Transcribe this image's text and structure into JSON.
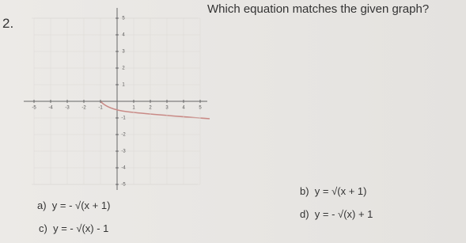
{
  "question": {
    "number": "2.",
    "text": "Which equation matches the given graph?"
  },
  "graph": {
    "x_labels": [
      "-5",
      "-4",
      "-3",
      "-2",
      "-1",
      "1",
      "2",
      "3",
      "4",
      "5"
    ],
    "y_labels": [
      "5",
      "4",
      "3",
      "2",
      "1",
      "-1",
      "-2",
      "-3",
      "-4",
      "-5"
    ]
  },
  "options": [
    {
      "letter": "a)",
      "text": "y = - √(x + 1)"
    },
    {
      "letter": "b)",
      "text": "y = √(x + 1)"
    },
    {
      "letter": "c)",
      "text": "y = - √(x) - 1"
    },
    {
      "letter": "d)",
      "text": "y = - √(x) + 1"
    }
  ]
}
